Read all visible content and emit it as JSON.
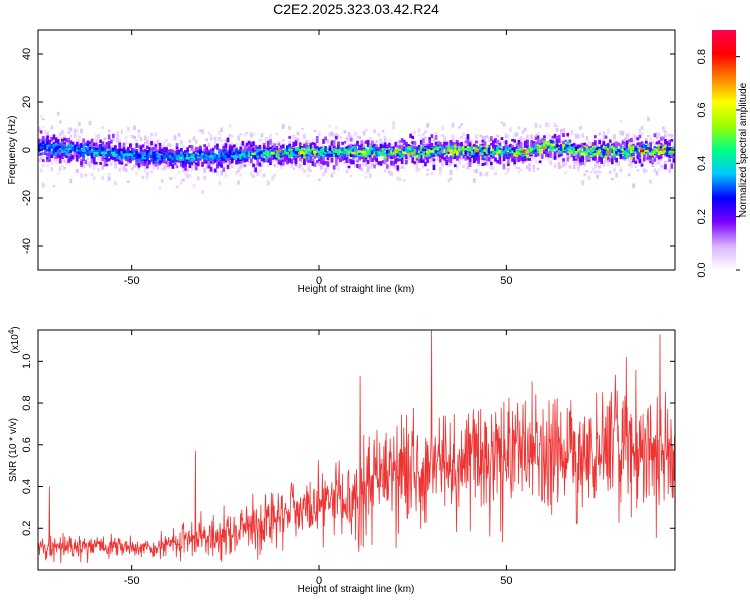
{
  "figure_title": "C2E2.2025.323.03.42.R24",
  "colorbar": {
    "label": "Normalized spectral amplitude",
    "range": [
      0.0,
      0.9
    ],
    "ticks": [
      {
        "value": 0.0,
        "label": "0.0"
      },
      {
        "value": 0.2,
        "label": "0.2"
      },
      {
        "value": 0.4,
        "label": "0.4"
      },
      {
        "value": 0.6,
        "label": "0.6"
      },
      {
        "value": 0.8,
        "label": "0.8"
      }
    ],
    "colormap": [
      "#ffffff",
      "#d9b3ff",
      "#7a00ff",
      "#0000ff",
      "#00c8ff",
      "#00ff80",
      "#9bff00",
      "#ffff00",
      "#ff8000",
      "#ff0000",
      "#ff0050"
    ]
  },
  "chart_data": [
    {
      "type": "heatmap",
      "name": "spectrogram",
      "xlabel": "Height of straight line (km)",
      "ylabel": "Frequency (Hz)",
      "xlim": [
        -75,
        95
      ],
      "ylim": [
        -50,
        50
      ],
      "xticks": [
        {
          "value": -50,
          "label": "-50"
        },
        {
          "value": 0,
          "label": "0"
        },
        {
          "value": 50,
          "label": "50"
        }
      ],
      "yticks": [
        {
          "value": -40,
          "label": "-40"
        },
        {
          "value": -20,
          "label": "-20"
        },
        {
          "value": 0,
          "label": "0"
        },
        {
          "value": 20,
          "label": "20"
        },
        {
          "value": 40,
          "label": "40"
        }
      ],
      "band": {
        "center_hz": [
          {
            "x": -75,
            "y": 1.0
          },
          {
            "x": -65,
            "y": 0.0
          },
          {
            "x": -50,
            "y": -2.0
          },
          {
            "x": -35,
            "y": -3.0
          },
          {
            "x": -20,
            "y": -2.0
          },
          {
            "x": -10,
            "y": -1.0
          },
          {
            "x": 0,
            "y": -1.0
          },
          {
            "x": 20,
            "y": -1.0
          },
          {
            "x": 40,
            "y": 0.0
          },
          {
            "x": 55,
            "y": -1.0
          },
          {
            "x": 62,
            "y": 2.0
          },
          {
            "x": 70,
            "y": -1.0
          },
          {
            "x": 95,
            "y": 0.0
          }
        ],
        "core_halfwidth_hz": 2,
        "envelope_halfwidth_hz": 8,
        "peak_amplitude_by_x": [
          {
            "x": -75,
            "v": 0.45
          },
          {
            "x": -50,
            "v": 0.45
          },
          {
            "x": -20,
            "v": 0.5
          },
          {
            "x": -10,
            "v": 0.75
          },
          {
            "x": 10,
            "v": 0.7
          },
          {
            "x": 30,
            "v": 0.85
          },
          {
            "x": 50,
            "v": 0.85
          },
          {
            "x": 70,
            "v": 0.8
          },
          {
            "x": 95,
            "v": 0.85
          }
        ]
      }
    },
    {
      "type": "line",
      "name": "snr",
      "xlabel": "Height of straight line (km)",
      "ylabel": "SNR (10 * v/v)",
      "yscale_label": "(x10",
      "yscale_exp": "4",
      "yscale_close": ")",
      "color": "#ee3333",
      "xlim": [
        -75,
        95
      ],
      "ylim": [
        0.0,
        1.15
      ],
      "xticks": [
        {
          "value": -50,
          "label": "-50"
        },
        {
          "value": 0,
          "label": "0"
        },
        {
          "value": 50,
          "label": "50"
        }
      ],
      "yticks": [
        {
          "value": 0.2,
          "label": "0.2"
        },
        {
          "value": 0.4,
          "label": "0.4"
        },
        {
          "value": 0.6,
          "label": "0.6"
        },
        {
          "value": 0.8,
          "label": "0.8"
        },
        {
          "value": 1.0,
          "label": "1.0"
        }
      ],
      "trend": [
        {
          "x": -75,
          "y": 0.1
        },
        {
          "x": -60,
          "y": 0.12
        },
        {
          "x": -45,
          "y": 0.1
        },
        {
          "x": -35,
          "y": 0.16
        },
        {
          "x": -20,
          "y": 0.2
        },
        {
          "x": -10,
          "y": 0.28
        },
        {
          "x": 0,
          "y": 0.33
        },
        {
          "x": 8,
          "y": 0.35
        },
        {
          "x": 12,
          "y": 0.46
        },
        {
          "x": 25,
          "y": 0.5
        },
        {
          "x": 40,
          "y": 0.55
        },
        {
          "x": 60,
          "y": 0.58
        },
        {
          "x": 80,
          "y": 0.6
        },
        {
          "x": 95,
          "y": 0.6
        }
      ],
      "spread_fraction": 0.45,
      "notable_peaks": [
        {
          "x": -72,
          "y": 0.4
        },
        {
          "x": -33,
          "y": 0.57
        },
        {
          "x": 11,
          "y": 0.93
        },
        {
          "x": 30,
          "y": 1.15
        },
        {
          "x": 82,
          "y": 1.02
        },
        {
          "x": 91,
          "y": 1.13
        }
      ]
    }
  ]
}
